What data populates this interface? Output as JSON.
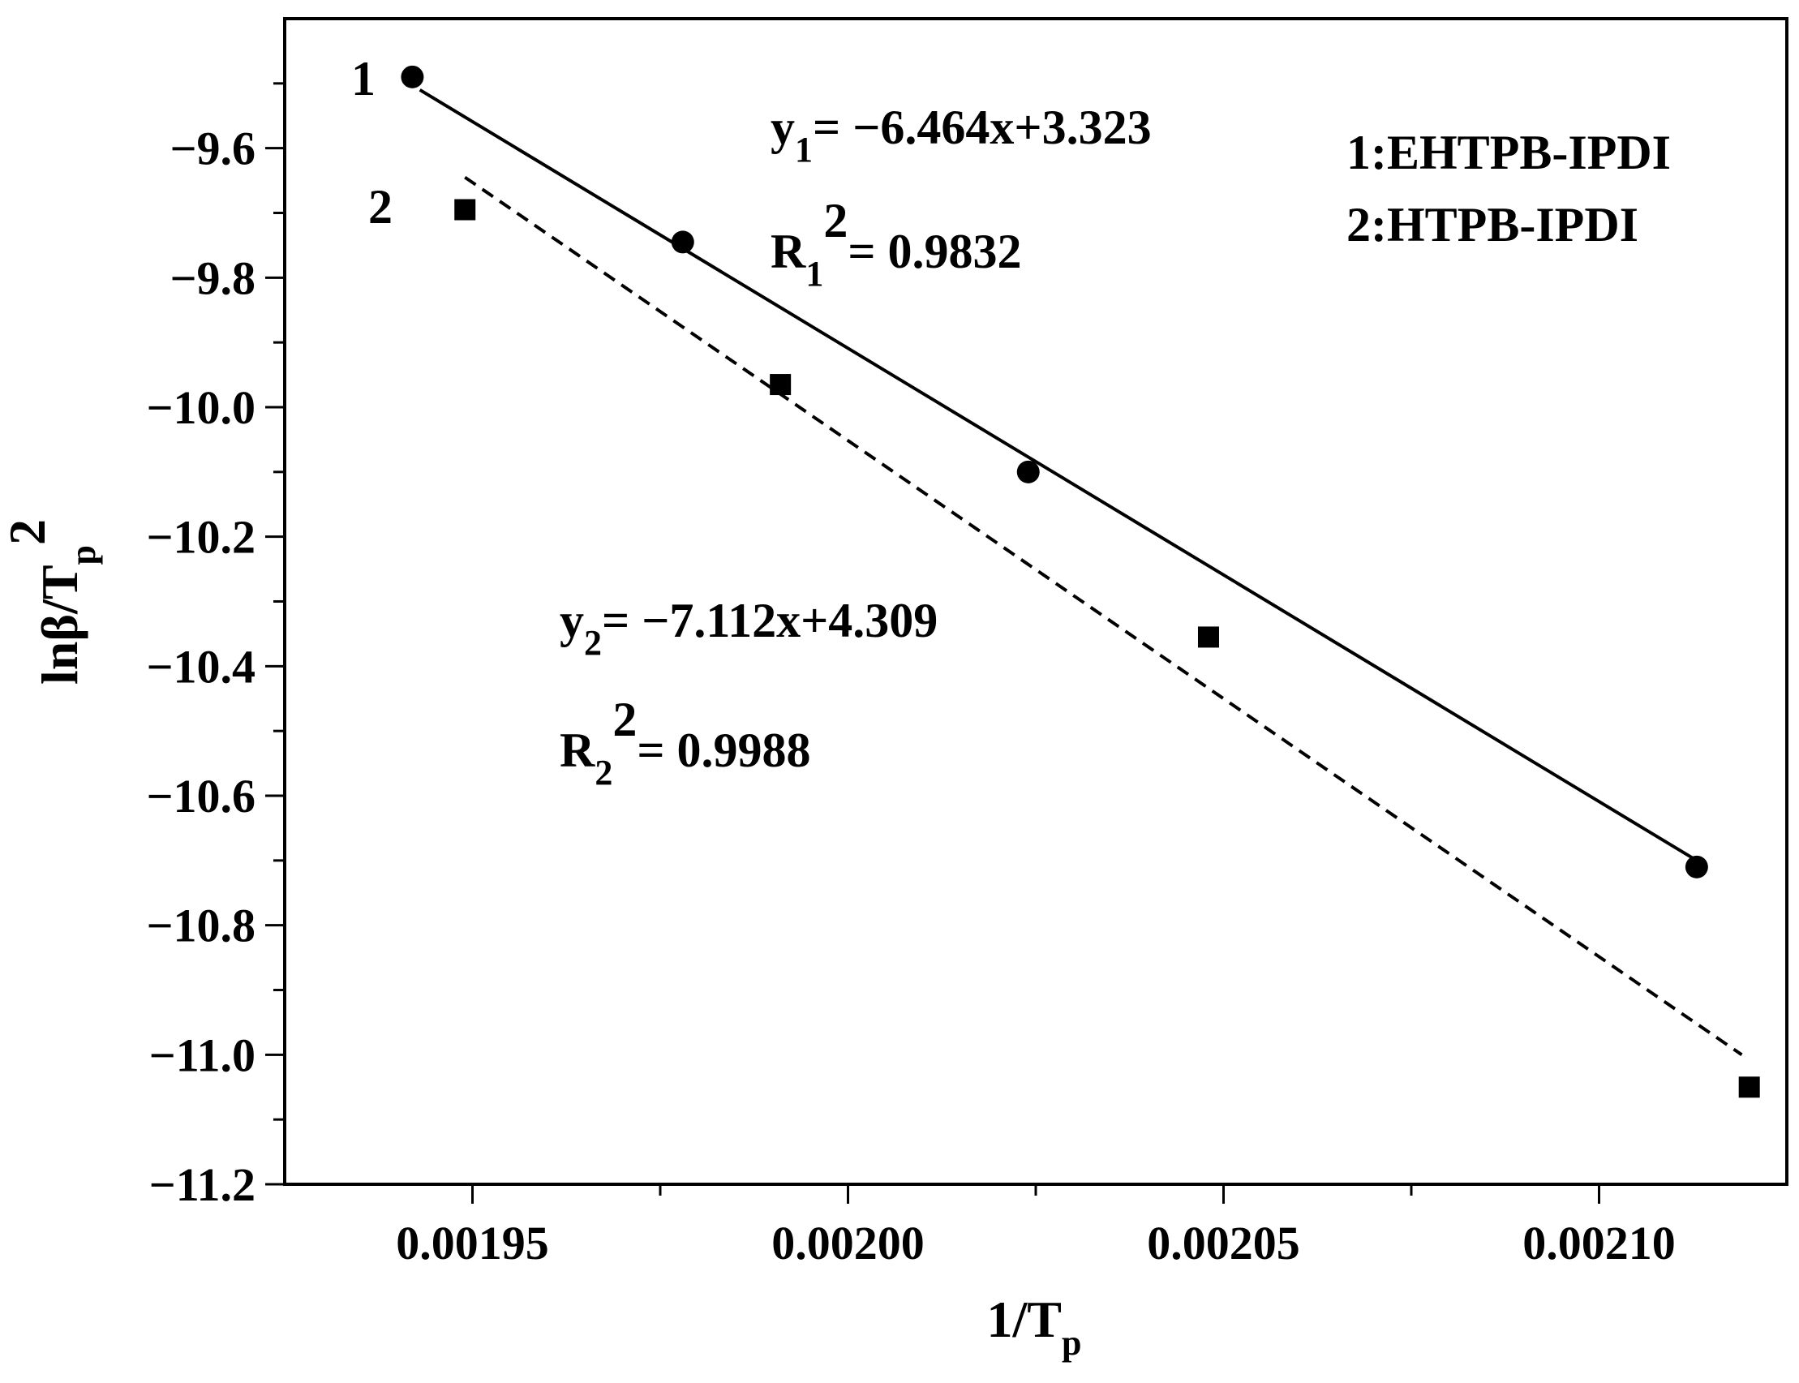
{
  "chart_data": {
    "type": "scatter",
    "xlabel": {
      "base": "1/T",
      "sub": "p"
    },
    "ylabel": {
      "base": "lnβ/T",
      "sub": "p",
      "sup": "2"
    },
    "xlim": [
      0.001925,
      0.002125
    ],
    "ylim": [
      -11.2,
      -9.4
    ],
    "xticks": [
      0.00195,
      0.002,
      0.00205,
      0.0021
    ],
    "xtick_labels": [
      "0.00195",
      "0.00200",
      "0.00205",
      "0.00210"
    ],
    "yticks": [
      -9.6,
      -9.8,
      -10.0,
      -10.2,
      -10.4,
      -10.6,
      -10.8,
      -11.0,
      -11.2
    ],
    "ytick_labels": [
      "−9.6",
      "−9.8",
      "−10.0",
      "−10.2",
      "−10.4",
      "−10.6",
      "−10.8",
      "−11.0",
      "−11.2"
    ],
    "series": [
      {
        "label": "1",
        "marker": "circle",
        "line_style": "solid",
        "x": [
          0.001942,
          0.001978,
          0.002024,
          0.002113
        ],
        "y": [
          -9.49,
          -9.745,
          -10.1,
          -10.71
        ],
        "fit": {
          "x": [
            0.001943,
            0.002113
          ],
          "y": [
            -9.51,
            -10.7
          ]
        },
        "equation": {
          "y": "y",
          "y_sub": "1",
          "rhs": "= −6.464x+3.323"
        },
        "r2": {
          "r": "R",
          "r_sub": "1",
          "sup": "2",
          "rhs": "= 0.9832"
        }
      },
      {
        "label": "2",
        "marker": "square",
        "line_style": "dashed",
        "x": [
          0.001949,
          0.001991,
          0.002048,
          0.00212
        ],
        "y": [
          -9.695,
          -9.965,
          -10.355,
          -11.05
        ],
        "fit": {
          "x": [
            0.001949,
            0.002119
          ],
          "y": [
            -9.645,
            -11.0
          ]
        },
        "equation": {
          "y": "y",
          "y_sub": "2",
          "rhs": "= −7.112x+4.309"
        },
        "r2": {
          "r": "R",
          "r_sub": "2",
          "sup": "2",
          "rhs": "= 0.9988"
        }
      }
    ],
    "legend": {
      "position": "top-right",
      "entries": [
        "1:EHTPB-IPDI",
        "2:HTPB-IPDI"
      ]
    }
  }
}
